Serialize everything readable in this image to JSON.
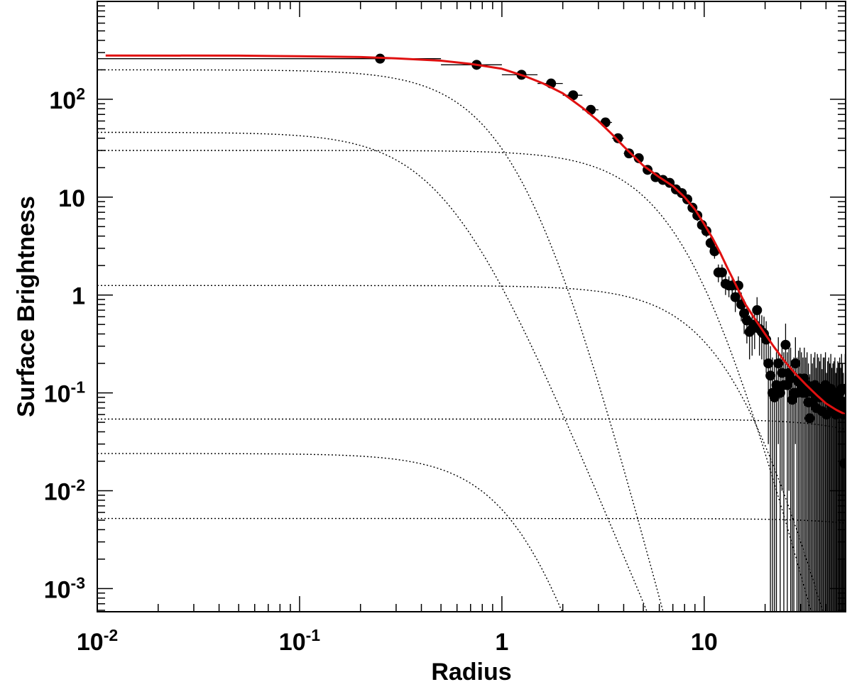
{
  "chart_data": {
    "type": "scatter",
    "title": "",
    "xlabel": "Radius",
    "ylabel": "Surface Brightness",
    "xscale": "log",
    "yscale": "log",
    "xlim": [
      0.01,
      50
    ],
    "ylim": [
      0.00058,
      1000
    ],
    "grid": false,
    "legend": "none",
    "x_ticks": [
      {
        "value": 0.01,
        "base": "10",
        "exp": "-2"
      },
      {
        "value": 0.1,
        "base": "10",
        "exp": "-1"
      },
      {
        "value": 1,
        "base": "1",
        "exp": ""
      },
      {
        "value": 10,
        "base": "10",
        "exp": ""
      }
    ],
    "y_ticks": [
      {
        "value": 0.001,
        "base": "10",
        "exp": "-3"
      },
      {
        "value": 0.01,
        "base": "10",
        "exp": "-2"
      },
      {
        "value": 0.1,
        "base": "10",
        "exp": "-1"
      },
      {
        "value": 1,
        "base": "1",
        "exp": ""
      },
      {
        "value": 10,
        "base": "10",
        "exp": ""
      },
      {
        "value": 100,
        "base": "10",
        "exp": "2"
      }
    ],
    "points": {
      "color": "#000000",
      "x": [
        0.25,
        0.75,
        1.25,
        1.75,
        2.25,
        2.75,
        3.25,
        3.75,
        4.25,
        4.75,
        5.25,
        5.75,
        6.25,
        6.75,
        7.25,
        7.75,
        8.25,
        8.75,
        9.25,
        9.75,
        10.25,
        10.75,
        11.25,
        11.75,
        12.25,
        12.75,
        13.25,
        13.75,
        14.25,
        14.75,
        15.25,
        15.75,
        16.25,
        16.75,
        17.25,
        17.75,
        18.25,
        18.75,
        19.25,
        19.75,
        20.25,
        20.75,
        21.25,
        21.75,
        22.25,
        22.75,
        23.25,
        23.75,
        24.25,
        24.75,
        25.25,
        25.75,
        26.25,
        26.75,
        27.25,
        27.75,
        28.25,
        28.75,
        29.25,
        29.75,
        30.25,
        30.75,
        31.25,
        31.75,
        32.25,
        32.75,
        33.25,
        33.75,
        34.25,
        34.75,
        35.25,
        35.75,
        36.25,
        36.75,
        37.25,
        37.75,
        38.25,
        38.75,
        39.25,
        39.75,
        40.25,
        40.75,
        41.25,
        41.75,
        42.25,
        42.75,
        43.25,
        43.75,
        44.25,
        44.75,
        45.25,
        45.75,
        46.25,
        46.75,
        47.25,
        47.75,
        48.25,
        48.75,
        49.25,
        49.75
      ],
      "y": [
        260,
        225,
        178,
        145,
        110,
        78,
        58,
        40,
        28,
        25,
        19,
        16,
        15,
        14,
        12,
        11,
        9.5,
        7.8,
        6.5,
        5.2,
        4.5,
        3.4,
        2.8,
        1.7,
        1.7,
        1.3,
        1.25,
        1.25,
        0.95,
        1.25,
        0.8,
        0.65,
        0.55,
        0.42,
        0.45,
        0.5,
        0.7,
        0.45,
        0.42,
        0.4,
        0.35,
        0.2,
        0.15,
        0.1,
        0.09,
        0.12,
        0.2,
        0.1,
        0.16,
        0.12,
        0.31,
        0.12,
        0.16,
        0.14,
        0.085,
        0.1,
        0.2,
        0.1,
        0.13,
        0.14,
        0.12,
        0.1,
        0.14,
        0.1,
        0.12,
        0.08,
        0.055,
        0.11,
        0.08,
        0.1,
        0.12,
        0.07,
        0.11,
        0.1,
        0.09,
        0.11,
        0.065,
        0.1,
        0.1,
        0.12,
        0.06,
        0.09,
        0.1,
        0.08,
        0.11,
        0.07,
        0.08,
        0.09,
        0.1,
        0.06,
        0.07,
        0.09,
        0.08,
        0.1,
        0.07,
        0.11,
        0.08,
        0.06,
        0.019,
        0.11
      ],
      "err": [
        12,
        10,
        9,
        8,
        7,
        5,
        4,
        3,
        2.5,
        2,
        1.8,
        1.5,
        1.4,
        1.3,
        1.2,
        1.1,
        1.0,
        0.9,
        0.8,
        0.7,
        0.6,
        0.5,
        0.45,
        0.35,
        0.35,
        0.3,
        0.3,
        0.3,
        0.28,
        0.3,
        0.26,
        0.25,
        0.23,
        0.2,
        0.21,
        0.22,
        0.25,
        0.21,
        0.2,
        0.2,
        0.19,
        0.17,
        0.15,
        0.13,
        0.13,
        0.14,
        0.17,
        0.13,
        0.15,
        0.14,
        0.2,
        0.14,
        0.15,
        0.15,
        0.12,
        0.13,
        0.17,
        0.13,
        0.14,
        0.15,
        0.14,
        0.13,
        0.15,
        0.13,
        0.14,
        0.12,
        0.1,
        0.14,
        0.12,
        0.13,
        0.14,
        0.11,
        0.14,
        0.13,
        0.12,
        0.14,
        0.11,
        0.13,
        0.13,
        0.14,
        0.1,
        0.12,
        0.13,
        0.12,
        0.14,
        0.11,
        0.12,
        0.12,
        0.13,
        0.1,
        0.11,
        0.12,
        0.12,
        0.13,
        0.11,
        0.14,
        0.12,
        0.1,
        0.05,
        0.14
      ],
      "xerr": 0.25
    },
    "fit_curve": {
      "color": "#e01010",
      "x": [
        0.011,
        0.05,
        0.1,
        0.2,
        0.3,
        0.5,
        0.7,
        1.0,
        1.3,
        1.6,
        2.0,
        2.5,
        3.0,
        3.5,
        4.0,
        4.5,
        5.0,
        6.0,
        7.0,
        8.0,
        9.0,
        10.0,
        11.0,
        12.0,
        13.0,
        14.0,
        15.0,
        16.0,
        18.0,
        20.0,
        22.0,
        25.0,
        28.0,
        32.0,
        36.0,
        40.0,
        45.0,
        50.0
      ],
      "y": [
        280,
        279,
        275,
        270,
        262,
        248,
        230,
        205,
        172,
        145,
        115,
        82,
        60,
        44,
        33,
        26,
        21,
        16,
        13,
        10,
        7.5,
        5.3,
        3.8,
        2.7,
        1.9,
        1.4,
        1.05,
        0.8,
        0.55,
        0.4,
        0.3,
        0.21,
        0.16,
        0.12,
        0.095,
        0.078,
        0.067,
        0.06
      ]
    },
    "components": [
      {
        "name": "",
        "style": "dotted",
        "amp": 200,
        "rc": 1.3,
        "beta": 1.5
      },
      {
        "name": "",
        "style": "dotted",
        "amp": 30,
        "rc": 9,
        "beta": 1.5
      },
      {
        "name": "",
        "style": "dotted",
        "amp": 46,
        "rc": 0.55,
        "beta": 1.0
      },
      {
        "name": "",
        "style": "dotted",
        "amp": 1.25,
        "rc": 16,
        "beta": 1.5
      },
      {
        "name": "",
        "style": "dotted",
        "amp": 0.054,
        "rc": 200,
        "beta": 1.5
      },
      {
        "name": "",
        "style": "dotted",
        "amp": 0.024,
        "rc": 1.6,
        "beta": 1.5
      },
      {
        "name": "",
        "style": "dotted",
        "amp": 0.0052,
        "rc": 300,
        "beta": 1.5
      }
    ]
  }
}
